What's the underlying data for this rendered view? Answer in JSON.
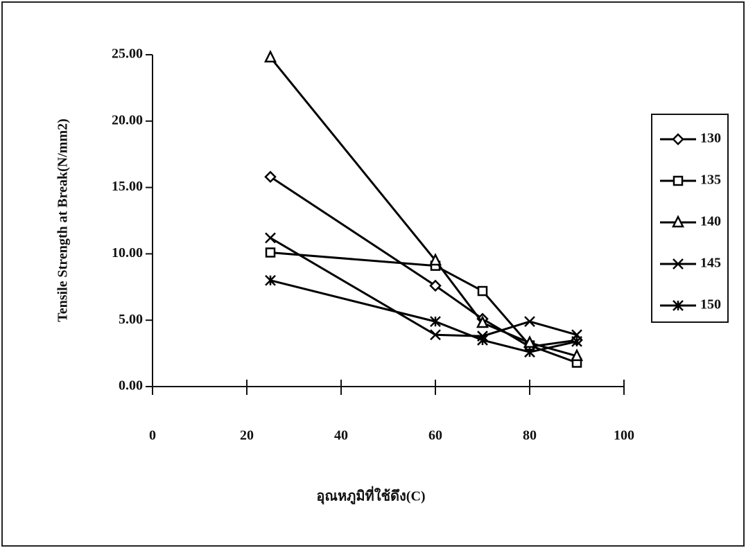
{
  "chart_data": {
    "type": "line",
    "y_label": "Tensile Strength at Break(N/mm2)",
    "x_label": "อุณหภูมิที่ใช้ดึง(C)",
    "x": [
      25,
      60,
      70,
      80,
      90
    ],
    "xlim": [
      0,
      100
    ],
    "xticks": [
      0,
      20,
      40,
      60,
      80,
      100
    ],
    "ylim": [
      0,
      25
    ],
    "yticks": [
      {
        "value": 0,
        "label": "0.00"
      },
      {
        "value": 5,
        "label": "5.00"
      },
      {
        "value": 10,
        "label": "10.00"
      },
      {
        "value": 15,
        "label": "15.00"
      },
      {
        "value": 20,
        "label": "20.00"
      },
      {
        "value": 25,
        "label": "25.00"
      }
    ],
    "grid": false,
    "legend": "right",
    "series": [
      {
        "name": "130",
        "color": "#000000",
        "marker": "diamond",
        "values": [
          15.8,
          7.6,
          5.1,
          3.0,
          3.5
        ]
      },
      {
        "name": "135",
        "color": "#000000",
        "marker": "square",
        "values": [
          10.1,
          9.1,
          7.2,
          3.1,
          1.8
        ]
      },
      {
        "name": "140",
        "color": "#000000",
        "marker": "triangle",
        "values": [
          24.8,
          9.5,
          4.8,
          3.3,
          2.3
        ]
      },
      {
        "name": "145",
        "color": "#000000",
        "marker": "x",
        "values": [
          11.2,
          3.9,
          3.8,
          4.9,
          3.9
        ]
      },
      {
        "name": "150",
        "color": "#000000",
        "marker": "asterisk",
        "values": [
          8.0,
          4.9,
          3.5,
          2.6,
          3.4
        ]
      }
    ]
  }
}
